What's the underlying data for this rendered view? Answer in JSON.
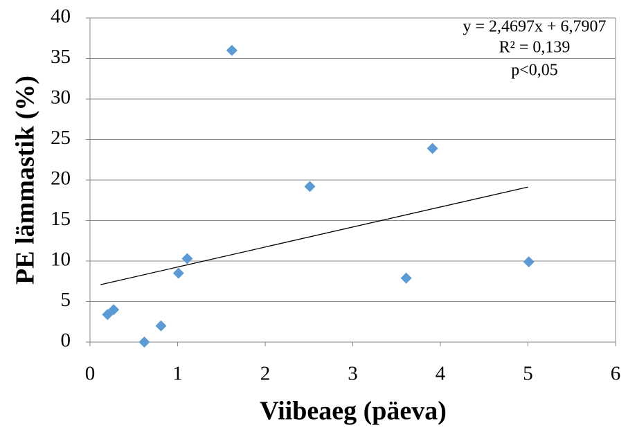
{
  "chart_data": {
    "type": "scatter",
    "x_label": "Viibeaeg (päeva)",
    "y_label": "PE lämmastik (%)",
    "x": [
      0.2,
      0.27,
      0.62,
      0.81,
      1.01,
      1.11,
      1.62,
      2.51,
      3.61,
      3.91,
      5.01
    ],
    "series": [
      {
        "color": "#5b9bd5",
        "values": [
          3.4,
          4.0,
          0.0,
          2.0,
          8.5,
          10.3,
          36.0,
          19.2,
          7.9,
          23.9,
          9.9
        ]
      }
    ],
    "trendline": {
      "slope": 2.4697,
      "intercept": 6.7907,
      "x_range": [
        0.12,
        5.0
      ],
      "color": "#000000"
    },
    "annotations": [
      "y = 2,4697x + 6,7907",
      "R² = 0,139",
      "p<0,05"
    ],
    "xlim": [
      0,
      6
    ],
    "xticks": [
      0,
      1,
      2,
      3,
      4,
      5,
      6
    ],
    "ylim": [
      0,
      40
    ],
    "yticks": [
      0,
      5,
      10,
      15,
      20,
      25,
      30,
      35,
      40
    ],
    "grid": true
  }
}
